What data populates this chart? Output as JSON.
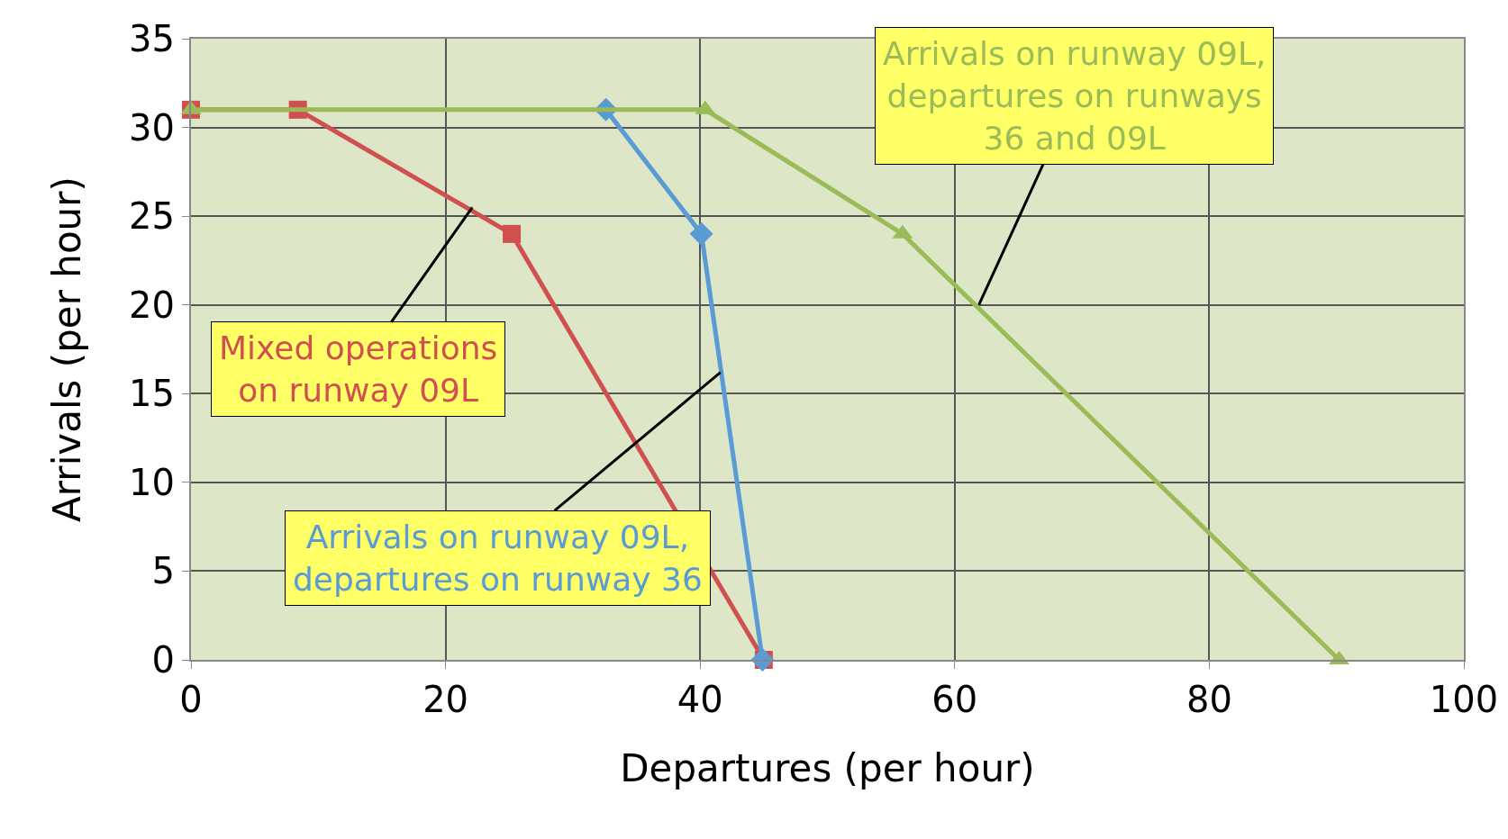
{
  "chart_data": {
    "type": "line",
    "xlabel": "Departures (per hour)",
    "ylabel": "Arrivals (per hour)",
    "series": [
      {
        "color": "#d0504f",
        "marker": "square",
        "x": [
          0,
          8.4,
          25.2,
          45
        ],
        "values": [
          31,
          31,
          24,
          0
        ]
      },
      {
        "color": "#5b9bd5",
        "marker": "diamond",
        "x": [
          32.6,
          40.1,
          44.9
        ],
        "values": [
          31,
          24,
          0
        ]
      },
      {
        "color": "#9bbb59",
        "marker": "triangle",
        "x": [
          0,
          40.4,
          55.9,
          90.2
        ],
        "values": [
          31,
          31,
          24,
          0
        ]
      }
    ],
    "annotations": [
      {
        "text": "Mixed operations\non runway 09L",
        "x": 22.1,
        "y": 25.5
      },
      {
        "text": "Arrivals on runway 09L,\ndepartures on runway 36",
        "x": 41.6,
        "y": 16.2
      },
      {
        "text": "Arrivals on runway 09L,\ndepartures on runways\n36 and 09L",
        "x": 61.9,
        "y": 20
      }
    ],
    "xlim": [
      0,
      100
    ],
    "xticks": [
      0,
      20,
      40,
      60,
      80,
      100
    ],
    "ylim": [
      0,
      35
    ],
    "yticks": [
      0,
      5,
      10,
      15,
      20,
      25,
      30,
      35
    ],
    "grid": true,
    "line_style": "solid"
  }
}
